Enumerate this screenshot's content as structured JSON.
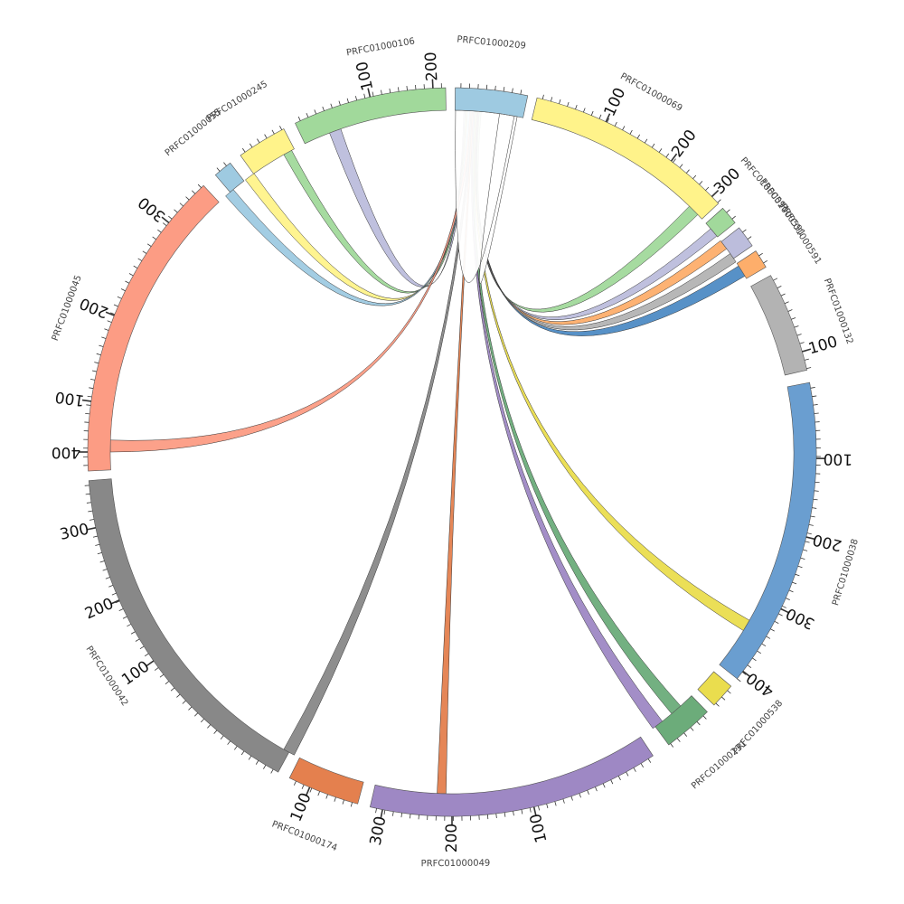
{
  "figure": {
    "segments": [
      {
        "id": "PRFC01000209",
        "label": "PRFC01000209",
        "color": "#9ecae1"
      },
      {
        "id": "PRFC01000069",
        "label": "PRFC01000069",
        "color": "#fff38a"
      },
      {
        "id": "PRFC01000591a",
        "label": "PRFC01000591",
        "color": "#a1d99b"
      },
      {
        "id": "PRFC01000591b",
        "label": "PRFC01000591",
        "color": "#bcbddc"
      },
      {
        "id": "PRFC01000591c",
        "label": "PRFC01000591",
        "color": "#fdae6b"
      },
      {
        "id": "PRFC01000132",
        "label": "PRFC01000132",
        "color": "#b3b3b3"
      },
      {
        "id": "PRFC01000038",
        "label": "PRFC01000038",
        "color": "#6a9ed0"
      },
      {
        "id": "PRFC01000538",
        "label": "PRFC01000538",
        "color": "#eadd4e"
      },
      {
        "id": "PRFC01000231",
        "label": "PRFC01000231",
        "color": "#6cac7a"
      },
      {
        "id": "PRFC01000049",
        "label": "PRFC01000049",
        "color": "#9e88c4"
      },
      {
        "id": "PRFC01000174",
        "label": "PRFC01000174",
        "color": "#e4804e"
      },
      {
        "id": "PRFC01000042",
        "label": "PRFC01000042",
        "color": "#888888"
      },
      {
        "id": "PRFC01000045",
        "label": "PRFC01000045",
        "color": "#fc9c84"
      },
      {
        "id": "PRFC01000055",
        "label": "PRFC01000055",
        "color": "#9ecae1"
      },
      {
        "id": "PRFC01000245",
        "label": "PRFC01000245",
        "color": "#fff38a"
      },
      {
        "id": "PRFC01000106",
        "label": "PRFC01000106",
        "color": "#a1d99b"
      }
    ],
    "ticks": [
      {
        "segment": "PRFC01000106",
        "label": "100"
      },
      {
        "segment": "PRFC01000106",
        "label": "200"
      },
      {
        "segment": "PRFC01000069",
        "label": "100"
      },
      {
        "segment": "PRFC01000069",
        "label": "200"
      },
      {
        "segment": "PRFC01000069",
        "label": "300"
      },
      {
        "segment": "PRFC01000132",
        "label": "100"
      },
      {
        "segment": "PRFC01000038",
        "label": "100"
      },
      {
        "segment": "PRFC01000038",
        "label": "200"
      },
      {
        "segment": "PRFC01000038",
        "label": "300"
      },
      {
        "segment": "PRFC01000038",
        "label": "400"
      },
      {
        "segment": "PRFC01000049",
        "label": "100"
      },
      {
        "segment": "PRFC01000049",
        "label": "200"
      },
      {
        "segment": "PRFC01000049",
        "label": "300"
      },
      {
        "segment": "PRFC01000174",
        "label": "100"
      },
      {
        "segment": "PRFC01000042",
        "label": "100"
      },
      {
        "segment": "PRFC01000042",
        "label": "200"
      },
      {
        "segment": "PRFC01000042",
        "label": "300"
      },
      {
        "segment": "PRFC01000042",
        "label": "400"
      },
      {
        "segment": "PRFC01000045",
        "label": "100"
      },
      {
        "segment": "PRFC01000045",
        "label": "200"
      },
      {
        "segment": "PRFC01000045",
        "label": "300"
      }
    ],
    "links": [
      {
        "from": "PRFC01000209",
        "to": "PRFC01000106",
        "color": "#bcbddc"
      },
      {
        "from": "PRFC01000209",
        "to": "PRFC01000245",
        "color": "#a1d99b"
      },
      {
        "from": "PRFC01000209",
        "to": "PRFC01000055",
        "color": "#fff38a"
      },
      {
        "from": "PRFC01000209",
        "to": "PRFC01000045",
        "color": "#9ecae1"
      },
      {
        "from": "PRFC01000209",
        "to": "PRFC01000045",
        "color": "#fc9c84"
      },
      {
        "from": "PRFC01000209",
        "to": "PRFC01000042",
        "color": "#888888"
      },
      {
        "from": "PRFC01000209",
        "to": "PRFC01000049",
        "color": "#e4804e"
      },
      {
        "from": "PRFC01000209",
        "to": "PRFC01000049",
        "color": "#9e88c4"
      },
      {
        "from": "PRFC01000209",
        "to": "PRFC01000231",
        "color": "#6cac7a"
      },
      {
        "from": "PRFC01000209",
        "to": "PRFC01000038",
        "color": "#eadd4e"
      },
      {
        "from": "PRFC01000209",
        "to": "PRFC01000132",
        "color": "#4e8bc4"
      },
      {
        "from": "PRFC01000209",
        "to": "PRFC01000132",
        "color": "#b3b3b3"
      },
      {
        "from": "PRFC01000209",
        "to": "PRFC01000591c",
        "color": "#fdae6b"
      },
      {
        "from": "PRFC01000209",
        "to": "PRFC01000591b",
        "color": "#bcbddc"
      },
      {
        "from": "PRFC01000209",
        "to": "PRFC01000069",
        "color": "#a1d99b"
      },
      {
        "from": "PRFC01000209",
        "to": "PRFC01000209",
        "color": "#ffffff"
      }
    ]
  }
}
